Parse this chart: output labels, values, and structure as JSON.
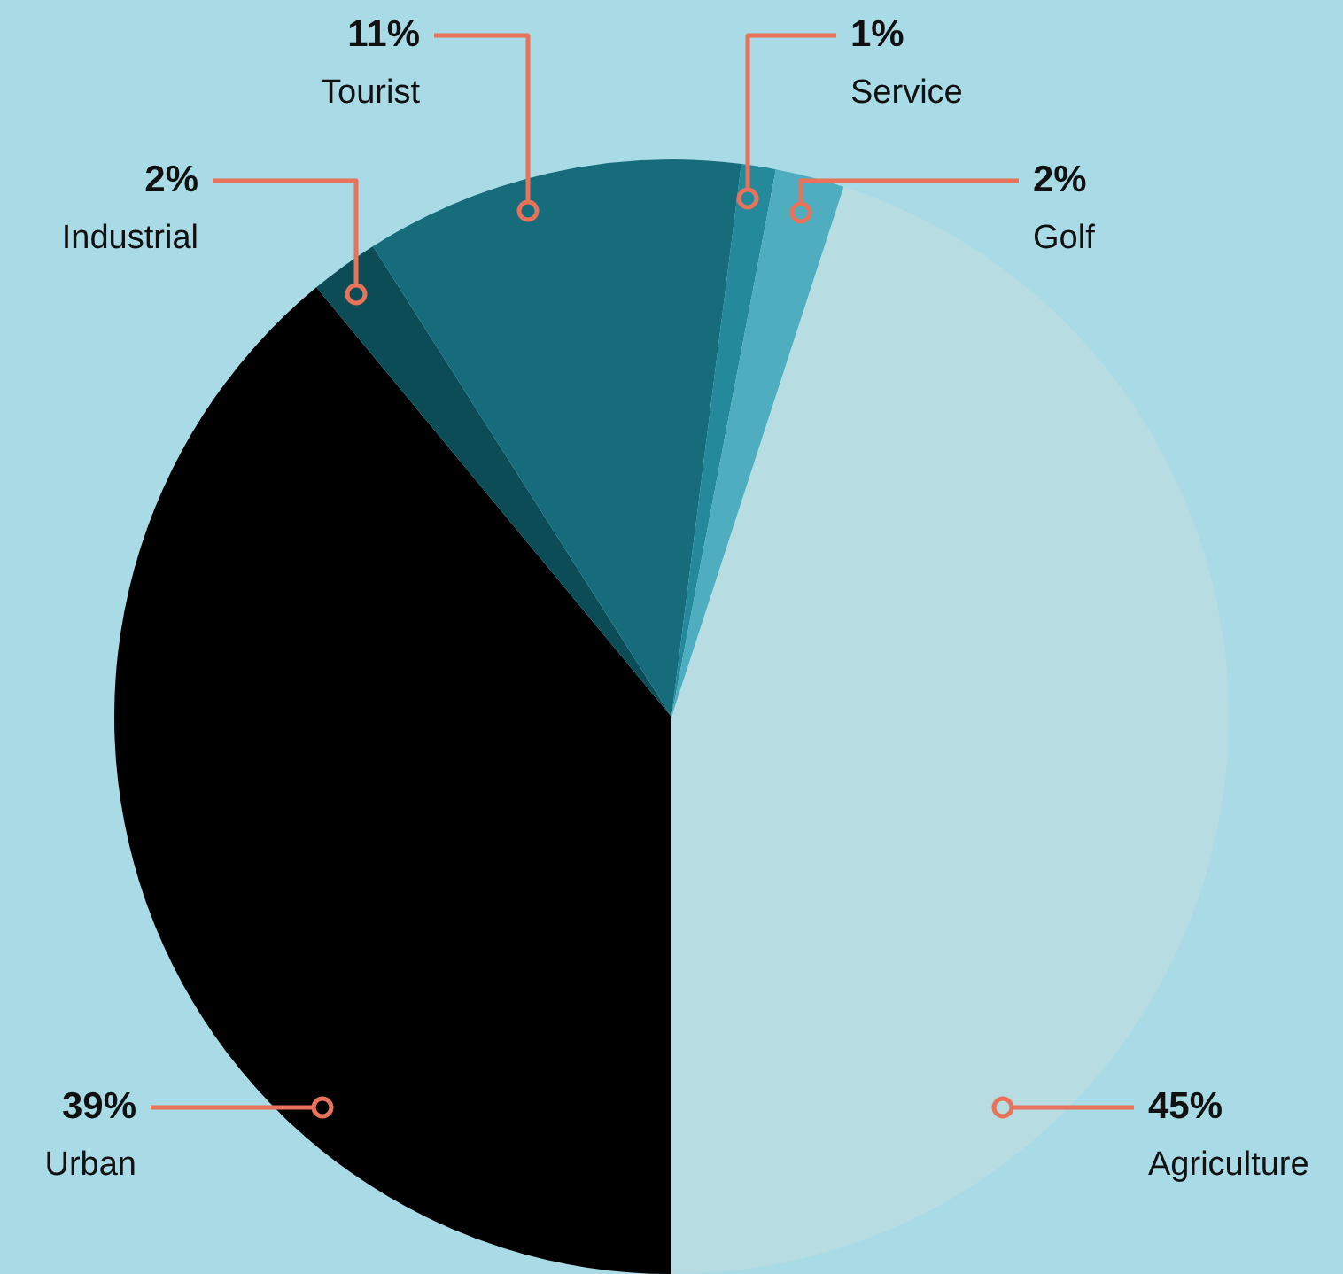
{
  "chart_data": {
    "type": "pie",
    "categories": [
      "Agriculture",
      "Urban",
      "Industrial",
      "Tourist",
      "Service",
      "Golf"
    ],
    "values": [
      45,
      39,
      2,
      11,
      1,
      2
    ],
    "colors": [
      "#b7dce2",
      "#000000",
      "#0b4c56",
      "#176c7b",
      "#24899b",
      "#4eaebf"
    ],
    "value_labels": [
      "45%",
      "39%",
      "2%",
      "11%",
      "1%",
      "2%"
    ]
  }
}
